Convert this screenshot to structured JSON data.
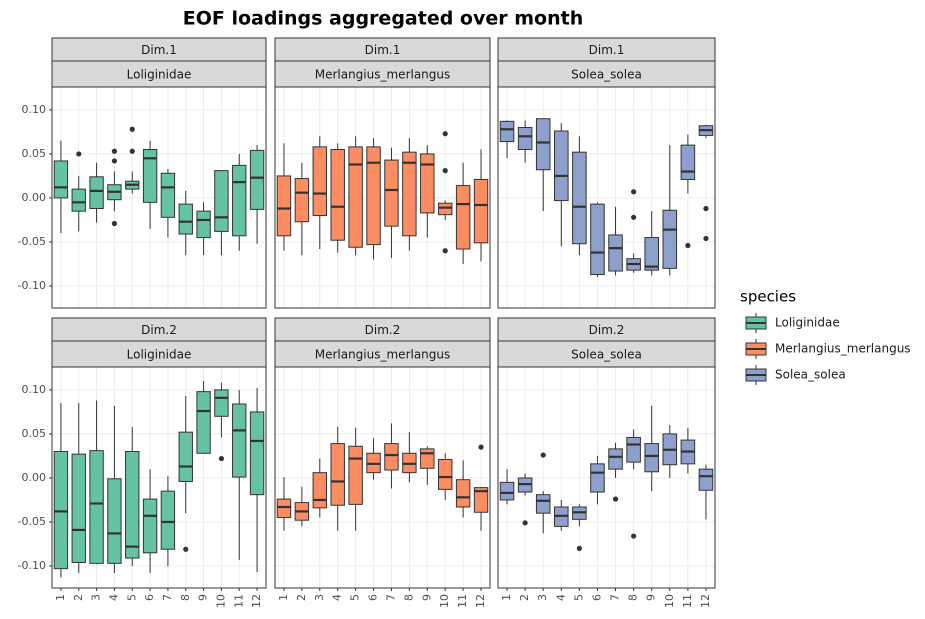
{
  "chart_data": {
    "type": "box",
    "title": "EOF loadings aggregated over month",
    "facet_rows": [
      "Dim.1",
      "Dim.2"
    ],
    "categories": [
      "1",
      "2",
      "3",
      "4",
      "5",
      "6",
      "7",
      "8",
      "9",
      "10",
      "11",
      "12"
    ],
    "ylim": [
      -0.125,
      0.126
    ],
    "yticks": [
      {
        "value": -0.1,
        "label": "-0.10"
      },
      -0.05,
      {
        "value": 0,
        "label": "0.00"
      },
      0.05,
      {
        "value": 0.1,
        "label": "0.10"
      }
    ],
    "grid": true,
    "legend": {
      "title": "species",
      "position": "right"
    },
    "series": [
      {
        "name": "Loliginidae",
        "color": "#66c2a5",
        "facets": [
          {
            "min": [
              -0.04,
              -0.038,
              -0.028,
              -0.015,
              0.005,
              -0.035,
              -0.045,
              -0.065,
              -0.065,
              -0.065,
              -0.06,
              -0.052
            ],
            "q1": [
              0,
              -0.015,
              -0.012,
              -0.002,
              0.01,
              -0.005,
              -0.022,
              -0.041,
              -0.045,
              -0.038,
              -0.043,
              -0.013
            ],
            "median": [
              0.012,
              -0.005,
              0.008,
              0.007,
              0.015,
              0.045,
              0.012,
              -0.027,
              -0.025,
              -0.022,
              0.018,
              0.023
            ],
            "q3": [
              0.042,
              0.01,
              0.024,
              0.015,
              0.019,
              0.055,
              0.028,
              -0.007,
              -0.015,
              0.031,
              0.037,
              0.054
            ],
            "max": [
              0.065,
              0.025,
              0.04,
              0.03,
              0.03,
              0.065,
              0.033,
              0.008,
              -0.005,
              0.031,
              0.05,
              0.06
            ],
            "outliers": [
              [],
              [
                0.05
              ],
              [],
              [
                0.053,
                0.042,
                -0.029
              ],
              [
                0.078,
                0.053
              ],
              [],
              [],
              [],
              [],
              [],
              [],
              []
            ]
          },
          {
            "min": [
              -0.113,
              -0.108,
              -0.098,
              -0.108,
              -0.1,
              -0.108,
              -0.1,
              -0.04,
              0.028,
              0.046,
              -0.093,
              -0.107
            ],
            "q1": [
              -0.103,
              -0.096,
              -0.097,
              -0.097,
              -0.091,
              -0.085,
              -0.081,
              -0.004,
              0.028,
              0.07,
              0.001,
              -0.019
            ],
            "median": [
              -0.038,
              -0.059,
              -0.029,
              -0.063,
              -0.078,
              -0.043,
              -0.05,
              0.013,
              0.076,
              0.091,
              0.054,
              0.042
            ],
            "q3": [
              0.03,
              0.027,
              0.031,
              -0.001,
              0.03,
              -0.024,
              -0.015,
              0.052,
              0.098,
              0.1,
              0.084,
              0.075
            ],
            "max": [
              0.085,
              0.085,
              0.088,
              0.082,
              0.058,
              0.01,
              0.002,
              0.093,
              0.11,
              0.108,
              0.1,
              0.102
            ],
            "outliers": [
              [],
              [],
              [],
              [],
              [],
              [],
              [],
              [
                -0.081
              ],
              [],
              [
                0.022
              ],
              [],
              []
            ]
          }
        ]
      },
      {
        "name": "Merlangius_merlangus",
        "color": "#fc8d62",
        "facets": [
          {
            "min": [
              -0.06,
              -0.065,
              -0.058,
              -0.062,
              -0.065,
              -0.07,
              -0.068,
              -0.06,
              -0.045,
              -0.025,
              -0.075,
              -0.072
            ],
            "q1": [
              -0.043,
              -0.027,
              -0.02,
              -0.048,
              -0.056,
              -0.053,
              -0.032,
              -0.043,
              -0.017,
              -0.019,
              -0.058,
              -0.051
            ],
            "median": [
              -0.012,
              0.006,
              0.005,
              -0.01,
              0.038,
              0.04,
              0.009,
              0.04,
              0.038,
              -0.011,
              -0.007,
              -0.008
            ],
            "q3": [
              0.025,
              0.022,
              0.058,
              0.055,
              0.058,
              0.058,
              0.043,
              0.052,
              0.05,
              -0.006,
              0.014,
              0.021
            ],
            "max": [
              0.062,
              0.04,
              0.07,
              0.062,
              0.07,
              0.068,
              0.057,
              0.068,
              0.06,
              -0.003,
              0.04,
              0.055
            ],
            "outliers": [
              [],
              [],
              [],
              [],
              [],
              [],
              [],
              [],
              [],
              [
                0.073,
                0.031,
                -0.06
              ],
              [],
              []
            ]
          },
          {
            "min": [
              -0.06,
              -0.055,
              -0.045,
              -0.06,
              -0.06,
              -0.002,
              -0.012,
              -0.005,
              -0.008,
              -0.025,
              -0.045,
              -0.06
            ],
            "q1": [
              -0.045,
              -0.048,
              -0.034,
              -0.031,
              -0.03,
              0.006,
              0.009,
              0.006,
              0.011,
              -0.013,
              -0.033,
              -0.039
            ],
            "median": [
              -0.033,
              -0.038,
              -0.025,
              -0.004,
              0.022,
              0.016,
              0.026,
              0.016,
              0.028,
              0.001,
              -0.022,
              -0.015
            ],
            "q3": [
              -0.024,
              -0.028,
              0.006,
              0.039,
              0.036,
              0.028,
              0.039,
              0.028,
              0.033,
              0.021,
              -0.002,
              -0.011
            ],
            "max": [
              0.001,
              -0.01,
              0.022,
              0.058,
              0.057,
              0.045,
              0.062,
              0.052,
              0.036,
              0.028,
              0.02,
              -0.01
            ],
            "outliers": [
              [],
              [],
              [],
              [],
              [],
              [],
              [],
              [],
              [],
              [],
              [],
              [
                0.035
              ]
            ]
          }
        ]
      },
      {
        "name": "Solea_solea",
        "color": "#8da0cb",
        "facets": [
          {
            "min": [
              0.045,
              0.04,
              -0.015,
              -0.055,
              -0.065,
              -0.09,
              -0.088,
              -0.085,
              -0.088,
              -0.088,
              0.005,
              0.068
            ],
            "q1": [
              0.064,
              0.055,
              0.032,
              -0.003,
              -0.052,
              -0.087,
              -0.083,
              -0.082,
              -0.082,
              -0.08,
              0.021,
              0.071
            ],
            "median": [
              0.078,
              0.07,
              0.063,
              0.025,
              -0.01,
              -0.062,
              -0.057,
              -0.075,
              -0.078,
              -0.036,
              0.03,
              0.077
            ],
            "q3": [
              0.087,
              0.08,
              0.09,
              0.076,
              0.052,
              -0.007,
              -0.042,
              -0.069,
              -0.045,
              -0.014,
              0.06,
              0.082
            ],
            "max": [
              0.088,
              0.088,
              0.09,
              0.085,
              0.07,
              -0.005,
              -0.01,
              -0.063,
              -0.015,
              0.06,
              0.072,
              0.083
            ],
            "outliers": [
              [],
              [],
              [],
              [],
              [],
              [],
              [],
              [
                0.007,
                -0.022
              ],
              [],
              [],
              [
                -0.054
              ],
              [
                -0.012,
                -0.046
              ]
            ]
          },
          {
            "min": [
              -0.03,
              -0.02,
              -0.063,
              -0.06,
              -0.055,
              -0.03,
              0,
              0.01,
              -0.015,
              0,
              0.005,
              -0.047
            ],
            "q1": [
              -0.025,
              -0.016,
              -0.04,
              -0.055,
              -0.047,
              -0.016,
              0.01,
              0.018,
              0.007,
              0.015,
              0.016,
              -0.014
            ],
            "median": [
              -0.017,
              -0.007,
              -0.026,
              -0.043,
              -0.039,
              0.006,
              0.024,
              0.038,
              0.025,
              0.032,
              0.03,
              0.002
            ],
            "q3": [
              -0.005,
              0,
              -0.019,
              -0.033,
              -0.033,
              0.016,
              0.033,
              0.046,
              0.039,
              0.05,
              0.043,
              0.01
            ],
            "max": [
              0.01,
              0.005,
              -0.015,
              -0.025,
              -0.03,
              0.025,
              0.04,
              0.055,
              0.082,
              0.06,
              0.057,
              0.015
            ],
            "outliers": [
              [],
              [
                -0.051
              ],
              [
                0.026
              ],
              [],
              [
                -0.08
              ],
              [],
              [
                -0.024
              ],
              [
                -0.066
              ],
              [],
              [],
              [],
              []
            ]
          }
        ]
      }
    ]
  }
}
